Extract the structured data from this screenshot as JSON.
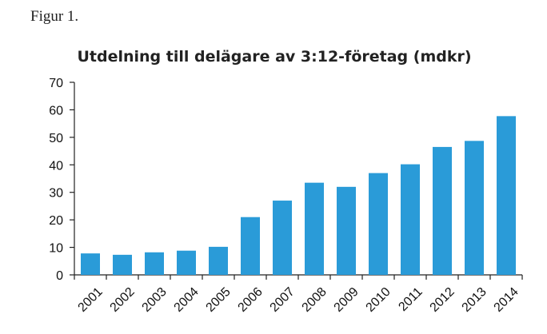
{
  "page": {
    "figure_label": "Figur 1."
  },
  "chart_data": {
    "type": "bar",
    "title": "Utdelning till delägare av 3:12-företag (mdkr)",
    "xlabel": "",
    "ylabel": "",
    "categories": [
      "2001",
      "2002",
      "2003",
      "2004",
      "2005",
      "2006",
      "2007",
      "2008",
      "2009",
      "2010",
      "2011",
      "2012",
      "2013",
      "2014"
    ],
    "values": [
      7.8,
      7.3,
      8.2,
      8.8,
      10.2,
      21.0,
      27.0,
      33.5,
      32.0,
      37.0,
      40.2,
      46.5,
      48.7,
      57.7
    ],
    "ylim": [
      0,
      70
    ],
    "yticks": [
      0,
      10,
      20,
      30,
      40,
      50,
      60,
      70
    ],
    "bar_color": "#2a9bd8",
    "grid": false,
    "legend": "none"
  }
}
